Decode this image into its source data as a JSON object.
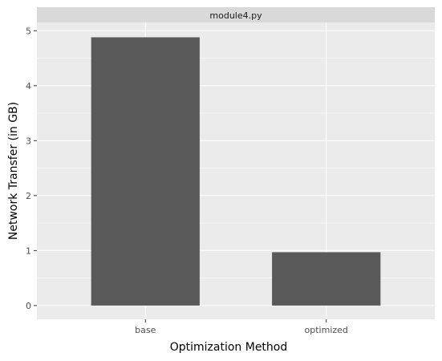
{
  "chart_data": {
    "type": "bar",
    "facet_title": "module4.py",
    "categories": [
      "base",
      "optimized"
    ],
    "values": [
      4.88,
      0.97
    ],
    "xlabel": "Optimization Method",
    "ylabel": "Network Transfer (in GB)",
    "ylim": [
      -0.25,
      5.15
    ],
    "yticks": [
      0,
      1,
      2,
      3,
      4,
      5
    ],
    "grid": true,
    "colors": {
      "bar": "#595959",
      "panel": "#ebebeb",
      "strip": "#d9d9d9",
      "grid": "#ffffff",
      "text": "#4d4d4d",
      "title": "#1a1a1a"
    }
  }
}
